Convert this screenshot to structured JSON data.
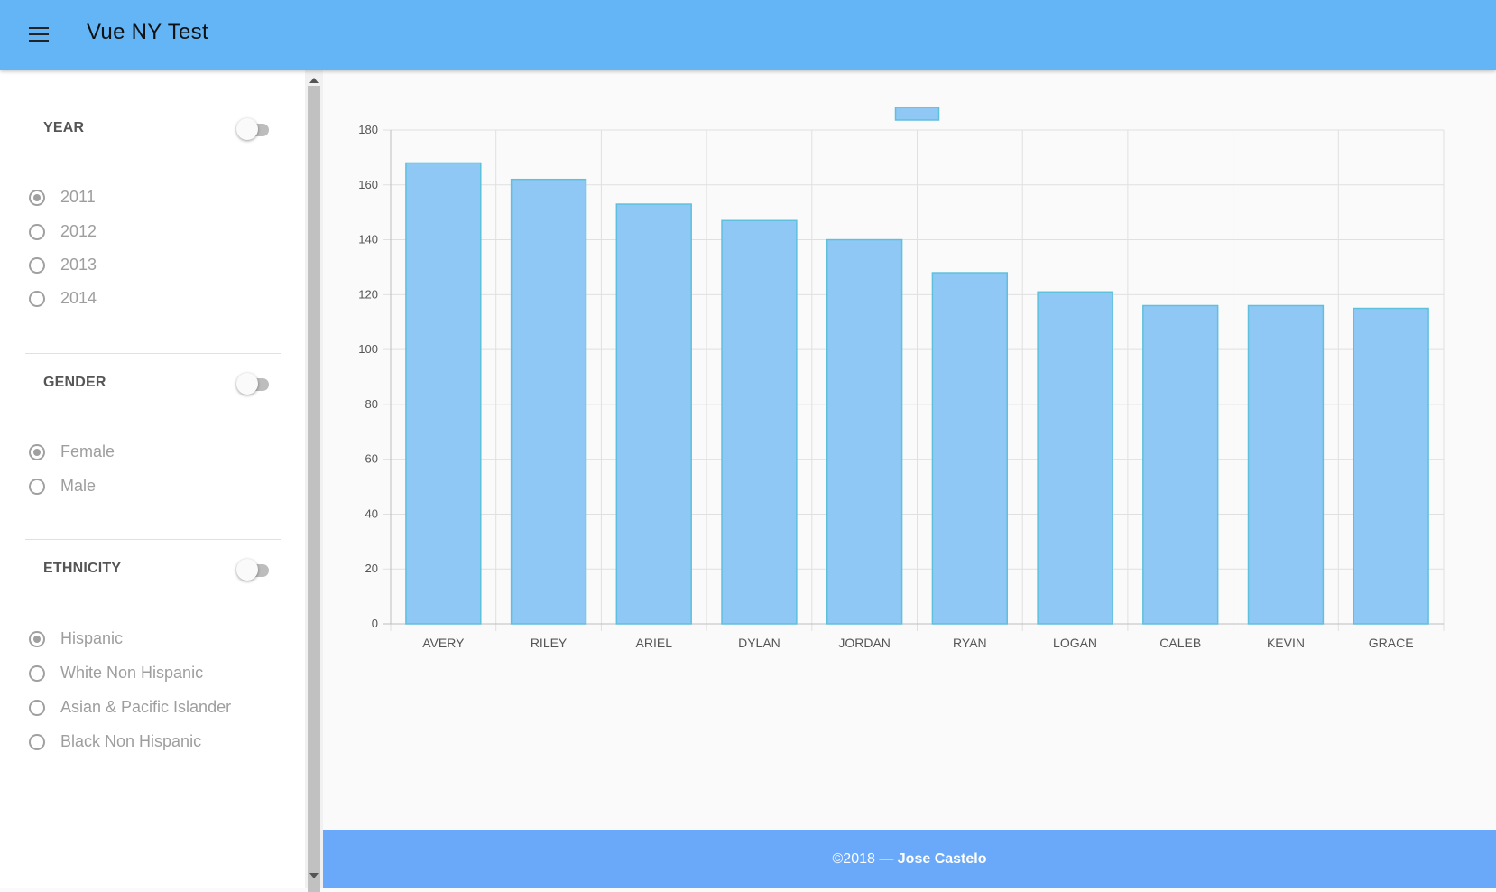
{
  "app": {
    "title": "Vue NY Test"
  },
  "sidebar": {
    "year": {
      "title": "YEAR",
      "options": [
        "2011",
        "2012",
        "2013",
        "2014"
      ],
      "selected": "2011"
    },
    "gender": {
      "title": "GENDER",
      "options": [
        "Female",
        "Male"
      ],
      "selected": "Female"
    },
    "ethnicity": {
      "title": "ETHNICITY",
      "options": [
        "Hispanic",
        "White Non Hispanic",
        "Asian & Pacific Islander",
        "Black Non Hispanic"
      ],
      "selected": "Hispanic"
    }
  },
  "footer": {
    "copyright": "©2018 — ",
    "author": "Jose Castelo"
  },
  "colors": {
    "toolbar": "#64b5f6",
    "footer": "#6aa9fa",
    "bar_fill": "#90c8f5",
    "bar_stroke": "#5ec0dc"
  },
  "icons": {
    "menu": "hamburger-menu-icon"
  },
  "chart_data": {
    "type": "bar",
    "categories": [
      "AVERY",
      "RILEY",
      "ARIEL",
      "DYLAN",
      "JORDAN",
      "RYAN",
      "LOGAN",
      "CALEB",
      "KEVIN",
      "GRACE"
    ],
    "values": [
      168,
      162,
      153,
      147,
      140,
      128,
      121,
      116,
      116,
      115
    ],
    "ylim": [
      0,
      180
    ],
    "yticks": [
      0,
      20,
      40,
      60,
      80,
      100,
      120,
      140,
      160,
      180
    ],
    "grid": true,
    "legend": "top-center",
    "title": "",
    "xlabel": "",
    "ylabel": ""
  }
}
